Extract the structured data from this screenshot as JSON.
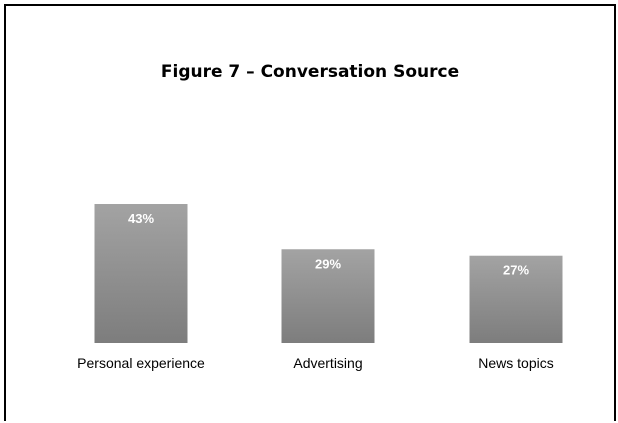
{
  "chart_data": {
    "type": "bar",
    "title": "Figure 7 – Conversation Source",
    "categories": [
      "Personal experience",
      "Advertising",
      "News topics"
    ],
    "values": [
      43,
      29,
      27
    ],
    "value_labels": [
      "43%",
      "29%",
      "27%"
    ],
    "xlabel": "",
    "ylabel": "",
    "ylim": [
      0,
      43
    ],
    "grid": false,
    "legend": "none",
    "bar_color_top": "#a3a3a3",
    "bar_color_bottom": "#7d7d7d"
  }
}
